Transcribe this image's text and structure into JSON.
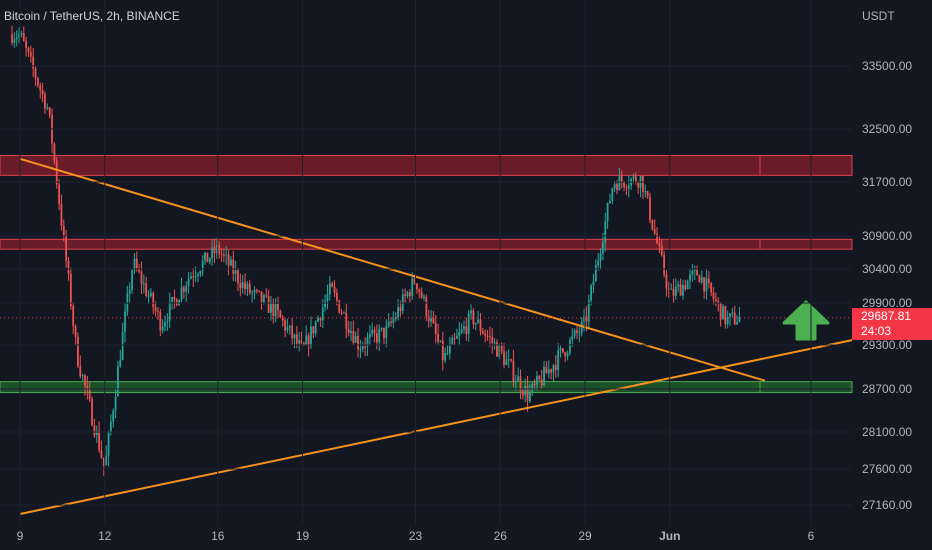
{
  "header": {
    "title": "Bitcoin / TetherUS, 2h, BINANCE"
  },
  "price_axis": {
    "unit": "USDT"
  },
  "last_price": {
    "value": "29687.81",
    "countdown": "24:03"
  },
  "colors": {
    "background": "#131722",
    "up_candle": "#26a69a",
    "down_candle": "#ef5350",
    "resistance_zone": "#7a1e2a",
    "support_zone": "#1f5a2a",
    "trendline": "#f7931a",
    "arrow": "#4caf50",
    "label_red": "#f23645"
  },
  "chart_data": {
    "type": "candlestick",
    "title": "Bitcoin / TetherUS, 2h, BINANCE",
    "y_unit": "USDT",
    "y_ticks": [
      "33500.00",
      "32500.00",
      "31700.00",
      "30900.00",
      "30400.00",
      "29900.00",
      "29300.00",
      "28700.00",
      "28100.00",
      "27600.00",
      "27160.00"
    ],
    "x_ticks": [
      "9",
      "12",
      "16",
      "19",
      "23",
      "26",
      "29",
      "Jun",
      "6"
    ],
    "last_price": 29687.81,
    "resistance_zones": [
      [
        31800,
        32100
      ],
      [
        30700,
        30850
      ]
    ],
    "support_zones": [
      [
        28650,
        28800
      ]
    ],
    "trendlines": [
      {
        "name": "descending",
        "from": [
          "9",
          32050
        ],
        "to": [
          "Jun",
          29200
        ]
      },
      {
        "name": "ascending",
        "from": [
          "9",
          27050
        ],
        "to": [
          "6",
          29250
        ]
      }
    ],
    "anchors": [
      {
        "x": "9",
        "y": 34000
      },
      {
        "x": "10",
        "y": 32800
      },
      {
        "x": "11",
        "y": 29200
      },
      {
        "x": "12",
        "y": 27600
      },
      {
        "x": "13",
        "y": 30500
      },
      {
        "x": "14",
        "y": 29600
      },
      {
        "x": "15",
        "y": 30300
      },
      {
        "x": "16",
        "y": 30700
      },
      {
        "x": "17",
        "y": 30100
      },
      {
        "x": "18",
        "y": 29800
      },
      {
        "x": "19",
        "y": 29200
      },
      {
        "x": "20",
        "y": 30100
      },
      {
        "x": "21",
        "y": 29300
      },
      {
        "x": "22",
        "y": 29500
      },
      {
        "x": "23",
        "y": 30250
      },
      {
        "x": "24",
        "y": 29100
      },
      {
        "x": "25",
        "y": 29700
      },
      {
        "x": "26",
        "y": 29200
      },
      {
        "x": "27",
        "y": 28600
      },
      {
        "x": "28",
        "y": 29100
      },
      {
        "x": "29",
        "y": 29600
      },
      {
        "x": "30",
        "y": 31700
      },
      {
        "x": "31",
        "y": 31750
      },
      {
        "x": "Jun",
        "y": 30000
      },
      {
        "x": "2",
        "y": 30350
      },
      {
        "x": "3",
        "y": 29650
      },
      {
        "x": "3.5",
        "y": 29690
      }
    ]
  }
}
